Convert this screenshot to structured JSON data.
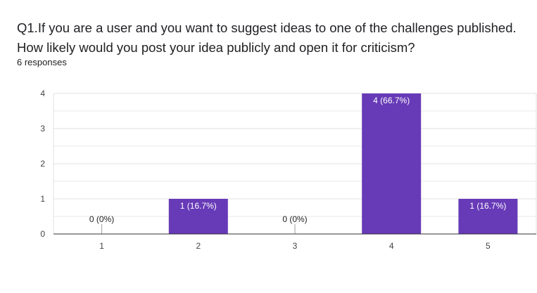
{
  "question": "Q1.If you are a user and you want to suggest ideas to one of the challenges published. How likely would you post your idea publicly and open it for criticism?",
  "responses": "6 responses",
  "colors": {
    "bar": "#673ab7",
    "grid": "#e0e0e0",
    "axis": "#333333"
  },
  "chart_data": {
    "type": "bar",
    "categories": [
      "1",
      "2",
      "3",
      "4",
      "5"
    ],
    "values": [
      0,
      1,
      0,
      4,
      1
    ],
    "data_labels": [
      "0 (0%)",
      "1 (16.7%)",
      "0 (0%)",
      "4 (66.7%)",
      "1 (16.7%)"
    ],
    "ylim": [
      0,
      4
    ],
    "yticks": [
      0,
      1,
      2,
      3,
      4
    ],
    "grid": true,
    "legend": "none",
    "title": "",
    "xlabel": "",
    "ylabel": ""
  }
}
